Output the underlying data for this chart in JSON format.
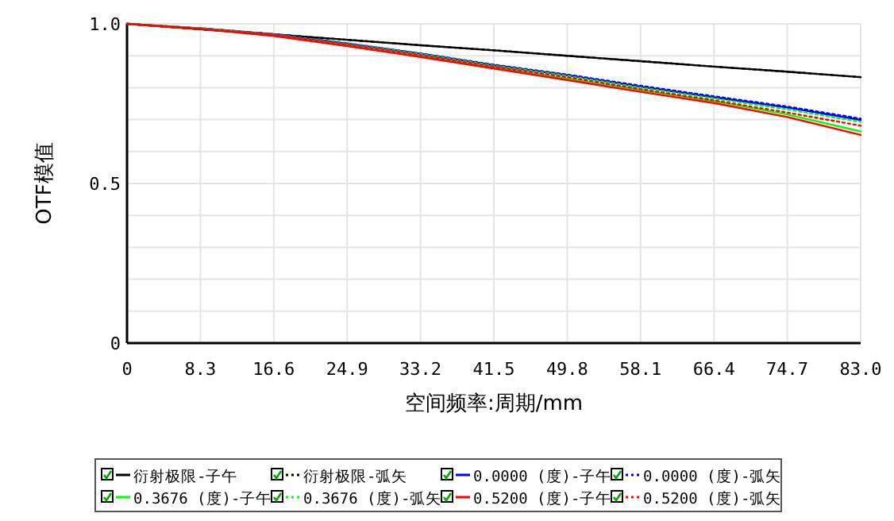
{
  "chart_data": {
    "type": "line",
    "xlabel": "空间频率:周期/mm",
    "ylabel": "OTF模值",
    "x": [
      0,
      8.3,
      16.6,
      24.9,
      33.2,
      41.5,
      49.8,
      58.1,
      66.4,
      74.7,
      83.0
    ],
    "xlim": [
      0,
      83
    ],
    "xticks": [
      0,
      8.3,
      16.6,
      24.9,
      33.2,
      41.5,
      49.8,
      58.1,
      66.4,
      74.7,
      {
        "value": 83,
        "label": "83.0"
      }
    ],
    "ylim": [
      0,
      1
    ],
    "yticks": [
      0,
      {
        "value": 0.1,
        "label": null
      },
      {
        "value": 0.2,
        "label": null
      },
      {
        "value": 0.3,
        "label": null
      },
      {
        "value": 0.4,
        "label": null
      },
      0.5,
      {
        "value": 0.6,
        "label": null
      },
      {
        "value": 0.7,
        "label": null
      },
      {
        "value": 0.8,
        "label": null
      },
      {
        "value": 0.9,
        "label": null
      },
      {
        "value": 1,
        "label": "1.0"
      }
    ],
    "grid": true,
    "legend": "bottom",
    "marker": "none",
    "series": [
      {
        "name": "衍射极限-子午",
        "color": "#000000",
        "line_style": "solid",
        "values": [
          1,
          0.983,
          0.967,
          0.95,
          0.933,
          0.917,
          0.9,
          0.883,
          0.866,
          0.85,
          0.833
        ]
      },
      {
        "name": "衍射极限-弧矢",
        "color": "#000000",
        "line_style": "dotted",
        "values": [
          1,
          0.983,
          0.967,
          0.95,
          0.933,
          0.917,
          0.9,
          0.883,
          0.866,
          0.85,
          0.833
        ]
      },
      {
        "name": "0.0000 (度)-子午",
        "color": "#0000ff",
        "line_style": "solid",
        "values": [
          1,
          0.986,
          0.967,
          0.938,
          0.906,
          0.87,
          0.839,
          0.803,
          0.77,
          0.738,
          0.699
        ]
      },
      {
        "name": "0.0000 (度)-弧矢",
        "color": "#0000ff",
        "line_style": "dotted",
        "values": [
          1,
          0.986,
          0.968,
          0.939,
          0.907,
          0.872,
          0.841,
          0.806,
          0.773,
          0.741,
          0.703
        ]
      },
      {
        "name": "0.3676 (度)-子午",
        "color": "#00ff00",
        "line_style": "solid",
        "values": [
          1,
          0.985,
          0.964,
          0.933,
          0.9,
          0.864,
          0.829,
          0.793,
          0.758,
          0.716,
          0.663
        ]
      },
      {
        "name": "0.3676 (度)-弧矢",
        "color": "#00ff00",
        "line_style": "dotted",
        "values": [
          1,
          0.986,
          0.967,
          0.937,
          0.905,
          0.869,
          0.837,
          0.8,
          0.766,
          0.732,
          0.693
        ]
      },
      {
        "name": "0.5200 (度)-子午",
        "color": "#ff0000",
        "line_style": "solid",
        "values": [
          1,
          0.984,
          0.962,
          0.93,
          0.896,
          0.86,
          0.824,
          0.787,
          0.752,
          0.708,
          0.652
        ]
      },
      {
        "name": "0.5200 (度)-弧矢",
        "color": "#ff0000",
        "line_style": "dotted",
        "values": [
          1,
          0.985,
          0.966,
          0.935,
          0.902,
          0.866,
          0.833,
          0.795,
          0.76,
          0.722,
          0.681
        ]
      }
    ]
  }
}
